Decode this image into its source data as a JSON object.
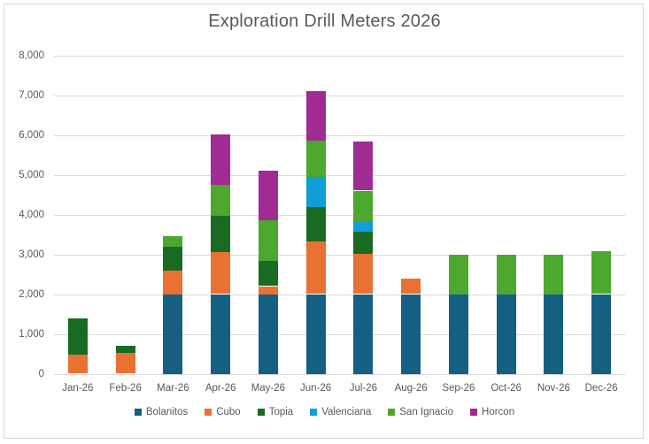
{
  "style": {
    "text_color": "#595959",
    "grid_color": "#D9D9D9",
    "frame_border_color": "#D6D6D6",
    "background": "#FFFFFF"
  },
  "chart_data": {
    "type": "bar",
    "stacked": true,
    "title": "Exploration Drill Meters 2026",
    "xlabel": "",
    "ylabel": "",
    "grid": "horizontal",
    "legend_position": "bottom",
    "ylim": [
      0,
      8000
    ],
    "y_tick_step": 1000,
    "y_tick_labels": [
      "0",
      "1,000",
      "2,000",
      "3,000",
      "4,000",
      "5,000",
      "6,000",
      "7,000",
      "8,000"
    ],
    "categories": [
      "Jan-26",
      "Feb-26",
      "Mar-26",
      "Apr-26",
      "May-26",
      "Jun-26",
      "Jul-26",
      "Aug-26",
      "Sep-26",
      "Oct-26",
      "Nov-26",
      "Dec-26"
    ],
    "series": [
      {
        "name": "Bolanitos",
        "color": "#156082",
        "values": [
          0,
          0,
          2000,
          2000,
          2000,
          2000,
          2000,
          2000,
          2000,
          2000,
          2000,
          2000
        ]
      },
      {
        "name": "Cubo",
        "color": "#E97132",
        "values": [
          480,
          530,
          600,
          1060,
          200,
          1330,
          1020,
          380,
          0,
          0,
          0,
          0
        ]
      },
      {
        "name": "Topia",
        "color": "#196B24",
        "values": [
          920,
          170,
          600,
          900,
          630,
          860,
          540,
          0,
          0,
          0,
          0,
          0
        ]
      },
      {
        "name": "Valenciana",
        "color": "#0F9ED5",
        "values": [
          0,
          0,
          0,
          0,
          0,
          760,
          280,
          0,
          0,
          0,
          0,
          0
        ]
      },
      {
        "name": "San Ignacio",
        "color": "#4EA72E",
        "values": [
          0,
          0,
          250,
          780,
          1030,
          900,
          760,
          0,
          1000,
          1000,
          1000,
          1070
        ]
      },
      {
        "name": "Horcon",
        "color": "#A02B93",
        "values": [
          0,
          0,
          0,
          1270,
          1250,
          1250,
          1240,
          0,
          0,
          0,
          0,
          0
        ]
      }
    ]
  }
}
